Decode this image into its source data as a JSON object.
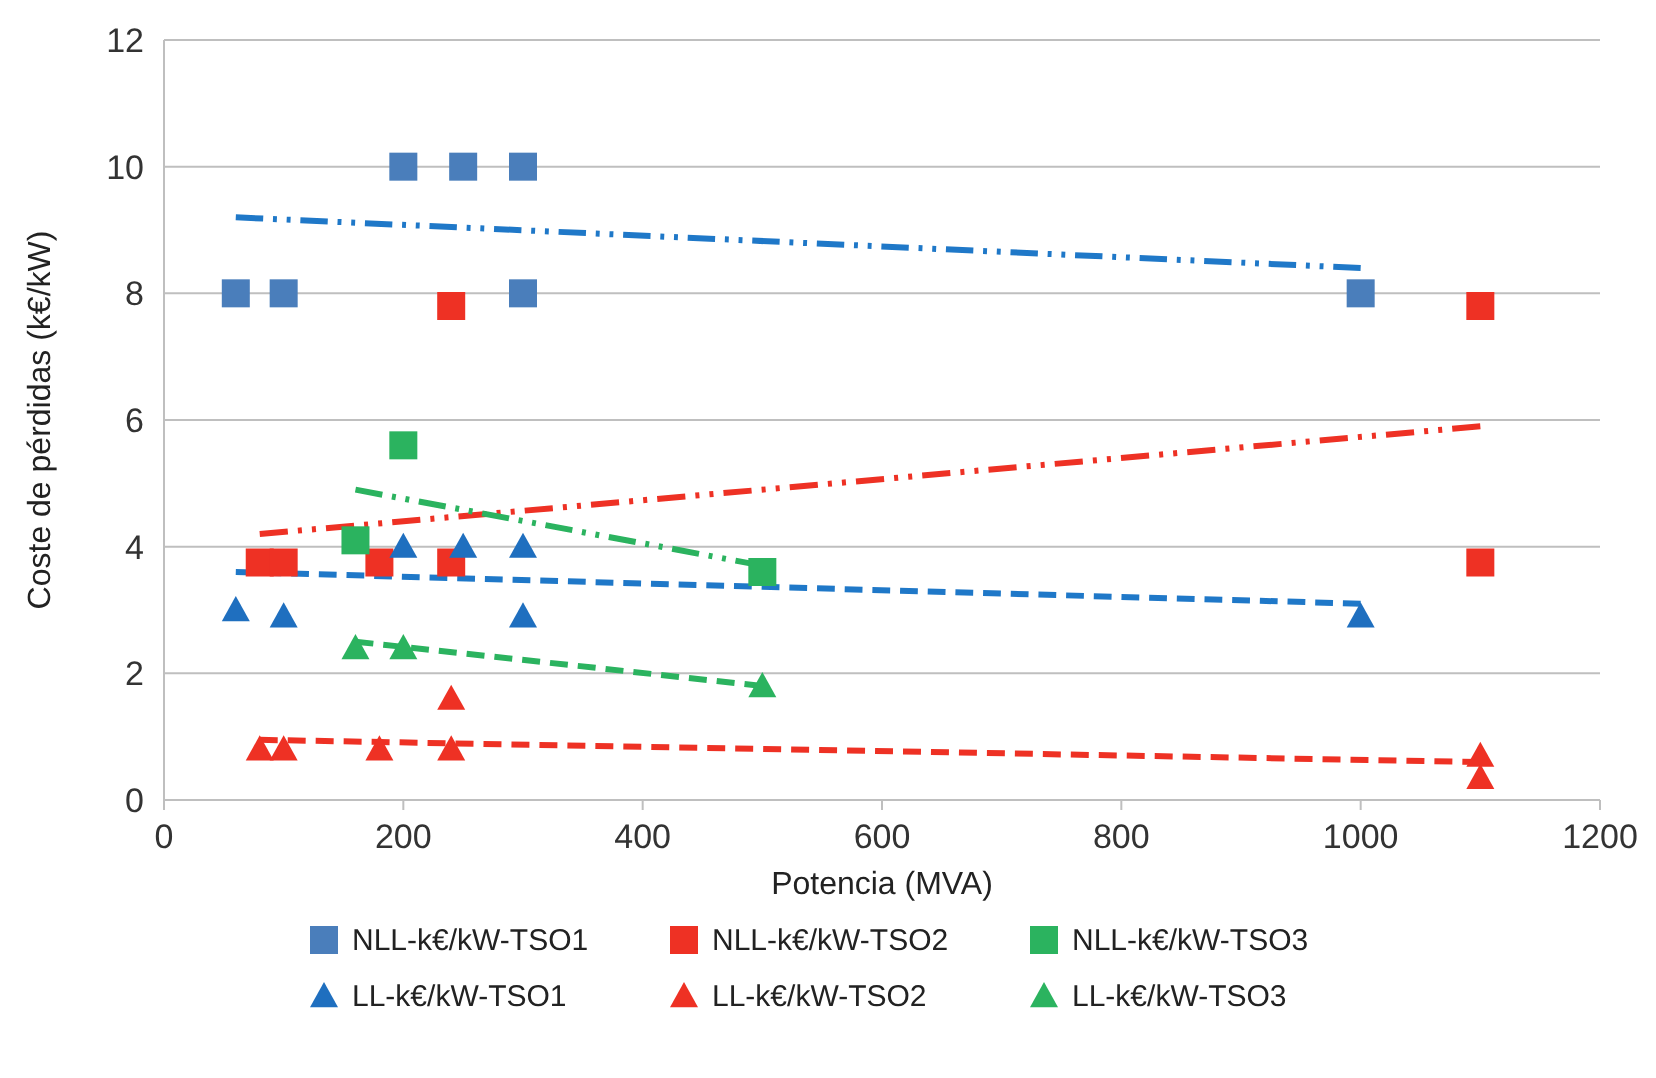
{
  "chart_data": {
    "type": "scatter",
    "xlabel": "Potencia (MVA)",
    "ylabel": "Coste de pérdidas (k€/kW)",
    "xlim": [
      0,
      1200
    ],
    "xticks": [
      0,
      200,
      400,
      600,
      800,
      1000,
      1200
    ],
    "ylim": [
      0,
      12
    ],
    "yticks": [
      0,
      2,
      4,
      6,
      8,
      10,
      12
    ],
    "grid": "y",
    "legend": "bottom",
    "series": [
      {
        "name": "NLL-k€/kW-TSO1",
        "color": "#4a7ebb",
        "marker": "square",
        "x": [
          60,
          100,
          200,
          250,
          300,
          300,
          1000
        ],
        "values": [
          8,
          8,
          10,
          10,
          10,
          8,
          8
        ]
      },
      {
        "name": "NLL-k€/kW-TSO2",
        "color": "#ee3124",
        "marker": "square",
        "x": [
          80,
          100,
          180,
          240,
          240,
          1100,
          1100
        ],
        "values": [
          3.75,
          3.75,
          3.75,
          3.75,
          7.8,
          7.8,
          3.75
        ]
      },
      {
        "name": "NLL-k€/kW-TSO3",
        "color": "#2bb35f",
        "marker": "square",
        "x": [
          160,
          200,
          500
        ],
        "values": [
          4.1,
          5.6,
          3.6
        ]
      },
      {
        "name": "LL-k€/kW-TSO1",
        "color": "#1f6fbf",
        "marker": "triangle",
        "x": [
          60,
          100,
          200,
          250,
          300,
          300,
          1000
        ],
        "values": [
          3.0,
          2.9,
          4.0,
          4.0,
          4.0,
          2.9,
          2.9
        ]
      },
      {
        "name": "LL-k€/kW-TSO2",
        "color": "#ee3124",
        "marker": "triangle",
        "x": [
          80,
          100,
          180,
          240,
          240,
          1100,
          1100
        ],
        "values": [
          0.8,
          0.8,
          0.8,
          1.6,
          0.8,
          0.7,
          0.35
        ]
      },
      {
        "name": "LL-k€/kW-TSO3",
        "color": "#2bb35f",
        "marker": "triangle",
        "x": [
          160,
          200,
          500
        ],
        "values": [
          2.4,
          2.4,
          1.8
        ]
      },
      {
        "type": "line",
        "color": "#1f78c8",
        "line_style": "dashdot",
        "marker": "none",
        "x": [
          60,
          1000
        ],
        "values": [
          9.2,
          8.4
        ]
      },
      {
        "type": "line",
        "color": "#ee3124",
        "line_style": "dashdot",
        "marker": "none",
        "x": [
          80,
          1100
        ],
        "values": [
          4.2,
          5.9
        ]
      },
      {
        "type": "line",
        "color": "#2bb35f",
        "line_style": "dashdot",
        "marker": "none",
        "x": [
          160,
          500
        ],
        "values": [
          4.9,
          3.7
        ]
      },
      {
        "type": "line",
        "color": "#1f78c8",
        "line_style": "dashed",
        "marker": "none",
        "x": [
          60,
          1000
        ],
        "values": [
          3.6,
          3.1
        ]
      },
      {
        "type": "line",
        "color": "#ee3124",
        "line_style": "dashed",
        "marker": "none",
        "x": [
          80,
          1100
        ],
        "values": [
          0.95,
          0.6
        ]
      },
      {
        "type": "line",
        "color": "#2bb35f",
        "line_style": "dashed",
        "marker": "none",
        "x": [
          160,
          500
        ],
        "values": [
          2.5,
          1.8
        ]
      }
    ]
  }
}
